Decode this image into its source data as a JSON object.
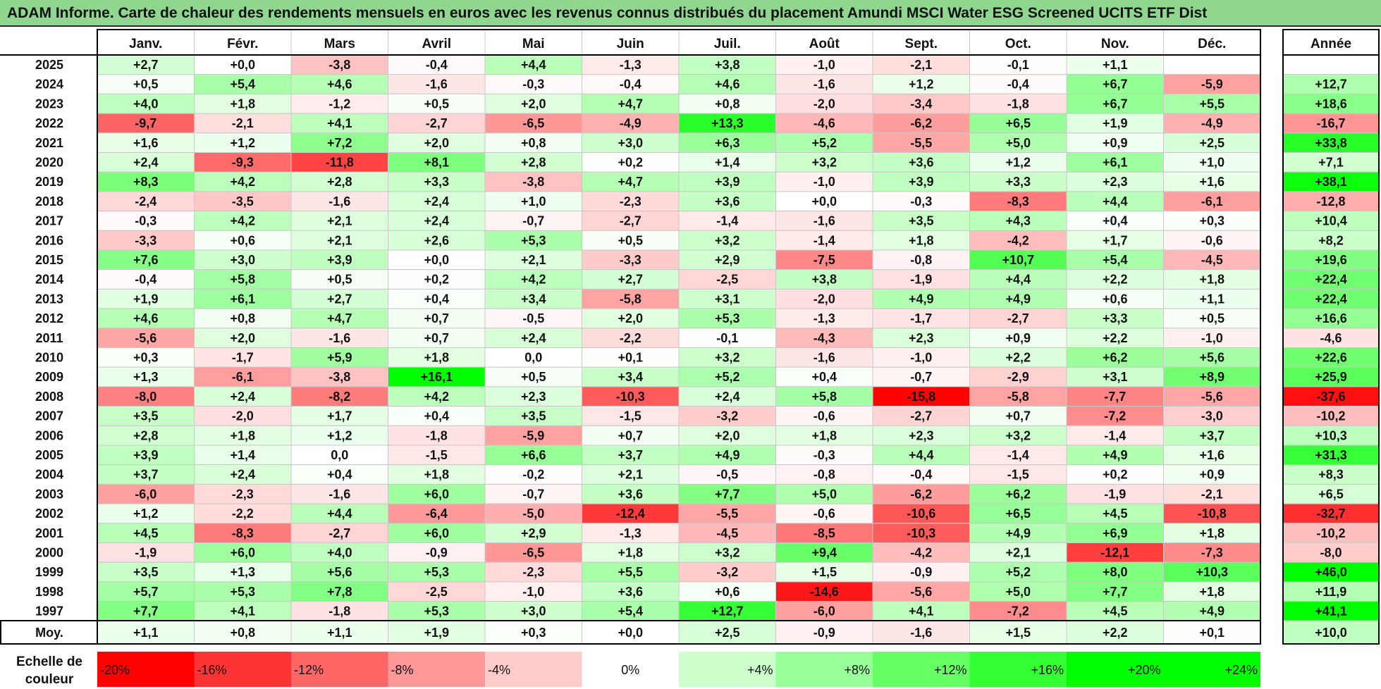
{
  "title": "ADAM Informe. Carte de chaleur des rendements mensuels en euros avec les revenus connus distribués du placement Amundi MSCI Water ESG Screened UCITS ETF Dist",
  "chart_data": {
    "type": "heatmap",
    "months": [
      "Janv.",
      "Févr.",
      "Mars",
      "Avril",
      "Mai",
      "Juin",
      "Juil.",
      "Août",
      "Sept.",
      "Oct.",
      "Nov.",
      "Déc."
    ],
    "year_header": "Année",
    "avg_label": "Moy.",
    "rows": [
      {
        "year": "2025",
        "months": [
          "+2,7",
          "+0,0",
          "-3,8",
          "-0,4",
          "+4,4",
          "-1,3",
          "+3,8",
          "-1,0",
          "-2,1",
          "-0,1",
          "+1,1",
          ""
        ],
        "annual": ""
      },
      {
        "year": "2024",
        "months": [
          "+0,5",
          "+5,4",
          "+4,6",
          "-1,6",
          "-0,3",
          "-0,4",
          "+4,6",
          "-1,6",
          "+1,2",
          "-0,4",
          "+6,7",
          "-5,9"
        ],
        "annual": "+12,7"
      },
      {
        "year": "2023",
        "months": [
          "+4,0",
          "+1,8",
          "-1,2",
          "+0,5",
          "+2,0",
          "+4,7",
          "+0,8",
          "-2,0",
          "-3,4",
          "-1,8",
          "+6,7",
          "+5,5"
        ],
        "annual": "+18,6"
      },
      {
        "year": "2022",
        "months": [
          "-9,7",
          "-2,1",
          "+4,1",
          "-2,7",
          "-6,5",
          "-4,9",
          "+13,3",
          "-4,6",
          "-6,2",
          "+6,5",
          "+1,9",
          "-4,9"
        ],
        "annual": "-16,7"
      },
      {
        "year": "2021",
        "months": [
          "+1,6",
          "+1,2",
          "+7,2",
          "+2,0",
          "+0,8",
          "+3,0",
          "+6,3",
          "+5,2",
          "-5,5",
          "+5,0",
          "+0,9",
          "+2,5"
        ],
        "annual": "+33,8"
      },
      {
        "year": "2020",
        "months": [
          "+2,4",
          "-9,3",
          "-11,8",
          "+8,1",
          "+2,8",
          "+0,2",
          "+1,4",
          "+3,2",
          "+3,6",
          "+1,2",
          "+6,1",
          "+1,0"
        ],
        "annual": "+7,1"
      },
      {
        "year": "2019",
        "months": [
          "+8,3",
          "+4,2",
          "+2,8",
          "+3,3",
          "-3,8",
          "+4,7",
          "+3,9",
          "-1,0",
          "+3,9",
          "+3,3",
          "+2,3",
          "+1,6"
        ],
        "annual": "+38,1"
      },
      {
        "year": "2018",
        "months": [
          "-2,4",
          "-3,5",
          "-1,6",
          "+2,4",
          "+1,0",
          "-2,3",
          "+3,6",
          "+0,0",
          "-0,3",
          "-8,3",
          "+4,4",
          "-6,1"
        ],
        "annual": "-12,8"
      },
      {
        "year": "2017",
        "months": [
          "-0,3",
          "+4,2",
          "+2,1",
          "+2,4",
          "-0,7",
          "-2,7",
          "-1,4",
          "-1,6",
          "+3,5",
          "+4,3",
          "+0,4",
          "+0,3"
        ],
        "annual": "+10,4"
      },
      {
        "year": "2016",
        "months": [
          "-3,3",
          "+0,6",
          "+2,1",
          "+2,6",
          "+5,3",
          "+0,5",
          "+3,2",
          "-1,4",
          "+1,8",
          "-4,2",
          "+1,7",
          "-0,6"
        ],
        "annual": "+8,2"
      },
      {
        "year": "2015",
        "months": [
          "+7,6",
          "+3,0",
          "+3,9",
          "+0,0",
          "+2,1",
          "-3,3",
          "+2,9",
          "-7,5",
          "-0,8",
          "+10,7",
          "+5,4",
          "-4,5"
        ],
        "annual": "+19,6"
      },
      {
        "year": "2014",
        "months": [
          "-0,4",
          "+5,8",
          "+0,5",
          "+0,2",
          "+4,2",
          "+2,7",
          "-2,5",
          "+3,8",
          "-1,9",
          "+4,4",
          "+2,2",
          "+1,8"
        ],
        "annual": "+22,4"
      },
      {
        "year": "2013",
        "months": [
          "+1,9",
          "+6,1",
          "+2,7",
          "+0,4",
          "+3,4",
          "-5,8",
          "+3,1",
          "-2,0",
          "+4,9",
          "+4,9",
          "+0,6",
          "+1,1"
        ],
        "annual": "+22,4"
      },
      {
        "year": "2012",
        "months": [
          "+4,6",
          "+0,8",
          "+4,7",
          "+0,7",
          "-0,5",
          "+2,0",
          "+5,3",
          "-1,3",
          "-1,7",
          "-2,7",
          "+3,3",
          "+0,5"
        ],
        "annual": "+16,6"
      },
      {
        "year": "2011",
        "months": [
          "-5,6",
          "+2,0",
          "-1,6",
          "+0,7",
          "+2,4",
          "-2,2",
          "-0,1",
          "-4,3",
          "+2,3",
          "+0,9",
          "+2,2",
          "-1,0"
        ],
        "annual": "-4,6"
      },
      {
        "year": "2010",
        "months": [
          "+0,3",
          "-1,7",
          "+5,9",
          "+1,8",
          "0,0",
          "+0,1",
          "+3,2",
          "-1,6",
          "-1,0",
          "+2,2",
          "+6,2",
          "+5,6"
        ],
        "annual": "+22,6"
      },
      {
        "year": "2009",
        "months": [
          "+1,3",
          "-6,1",
          "-3,8",
          "+16,1",
          "+0,5",
          "+3,4",
          "+5,2",
          "+0,4",
          "-0,7",
          "-2,9",
          "+3,1",
          "+8,9"
        ],
        "annual": "+25,9"
      },
      {
        "year": "2008",
        "months": [
          "-8,0",
          "+2,4",
          "-8,2",
          "+4,2",
          "+2,3",
          "-10,3",
          "+2,4",
          "+5,8",
          "-15,8",
          "-5,8",
          "-7,7",
          "-5,6"
        ],
        "annual": "-37,6"
      },
      {
        "year": "2007",
        "months": [
          "+3,5",
          "-2,0",
          "+1,7",
          "+0,4",
          "+3,5",
          "-1,5",
          "-3,2",
          "-0,6",
          "-2,7",
          "+0,7",
          "-7,2",
          "-3,0"
        ],
        "annual": "-10,2"
      },
      {
        "year": "2006",
        "months": [
          "+2,8",
          "+1,8",
          "+1,2",
          "-1,8",
          "-5,9",
          "+0,7",
          "+2,0",
          "+1,8",
          "+2,3",
          "+3,2",
          "-1,4",
          "+3,7"
        ],
        "annual": "+10,3"
      },
      {
        "year": "2005",
        "months": [
          "+3,9",
          "+1,4",
          "0,0",
          "-1,5",
          "+6,6",
          "+3,7",
          "+4,9",
          "-0,3",
          "+4,4",
          "-1,4",
          "+4,9",
          "+1,6"
        ],
        "annual": "+31,3"
      },
      {
        "year": "2004",
        "months": [
          "+3,7",
          "+2,4",
          "+0,4",
          "+1,8",
          "-0,2",
          "+2,1",
          "-0,5",
          "-0,8",
          "-0,4",
          "-1,5",
          "+0,2",
          "+0,9"
        ],
        "annual": "+8,3"
      },
      {
        "year": "2003",
        "months": [
          "-6,0",
          "-2,3",
          "-1,6",
          "+6,0",
          "-0,7",
          "+3,6",
          "+7,7",
          "+5,0",
          "-6,2",
          "+6,2",
          "-1,9",
          "-2,1"
        ],
        "annual": "+6,5"
      },
      {
        "year": "2002",
        "months": [
          "+1,2",
          "-2,2",
          "+4,4",
          "-6,4",
          "-5,0",
          "-12,4",
          "-5,5",
          "-0,6",
          "-10,6",
          "+6,5",
          "+4,5",
          "-10,8"
        ],
        "annual": "-32,7"
      },
      {
        "year": "2001",
        "months": [
          "+4,5",
          "-8,3",
          "-2,7",
          "+6,0",
          "+2,9",
          "-1,3",
          "-4,5",
          "-8,5",
          "-10,3",
          "+4,9",
          "+6,9",
          "+1,8"
        ],
        "annual": "-10,2"
      },
      {
        "year": "2000",
        "months": [
          "-1,9",
          "+6,0",
          "+4,0",
          "-0,9",
          "-6,5",
          "+1,8",
          "+3,2",
          "+9,4",
          "-4,2",
          "+2,1",
          "-12,1",
          "-7,3"
        ],
        "annual": "-8,0"
      },
      {
        "year": "1999",
        "months": [
          "+3,5",
          "+1,3",
          "+5,6",
          "+5,3",
          "-2,3",
          "+5,5",
          "-3,2",
          "+1,5",
          "-0,9",
          "+5,2",
          "+8,0",
          "+10,3"
        ],
        "annual": "+46,0"
      },
      {
        "year": "1998",
        "months": [
          "+5,7",
          "+5,3",
          "+7,8",
          "-2,5",
          "-1,0",
          "+3,6",
          "+0,6",
          "-14,6",
          "-5,6",
          "+5,0",
          "+7,7",
          "+1,8"
        ],
        "annual": "+11,9"
      },
      {
        "year": "1997",
        "months": [
          "+7,7",
          "+4,1",
          "-1,8",
          "+5,3",
          "+3,0",
          "+5,4",
          "+12,7",
          "-6,0",
          "+4,1",
          "-7,2",
          "+4,5",
          "+4,9"
        ],
        "annual": "+41,1"
      }
    ],
    "average": {
      "months": [
        "+1,1",
        "+0,8",
        "+1,1",
        "+1,9",
        "+0,3",
        "+0,0",
        "+2,5",
        "-0,9",
        "-1,6",
        "+1,5",
        "+2,2",
        "+0,1"
      ],
      "annual": "+10,0"
    },
    "scale": {
      "label_line1": "Echelle de",
      "label_line2": "couleur",
      "items": [
        "-20%",
        "-16%",
        "-12%",
        "-8%",
        "-4%",
        "0%",
        "+4%",
        "+8%",
        "+12%",
        "+16%",
        "+20%",
        "+24%"
      ]
    },
    "colors": {
      "negative_max": "#ff0000",
      "neutral": "#ffffff",
      "positive_max": "#00ff00",
      "title_bg": "#8fd68f"
    }
  }
}
